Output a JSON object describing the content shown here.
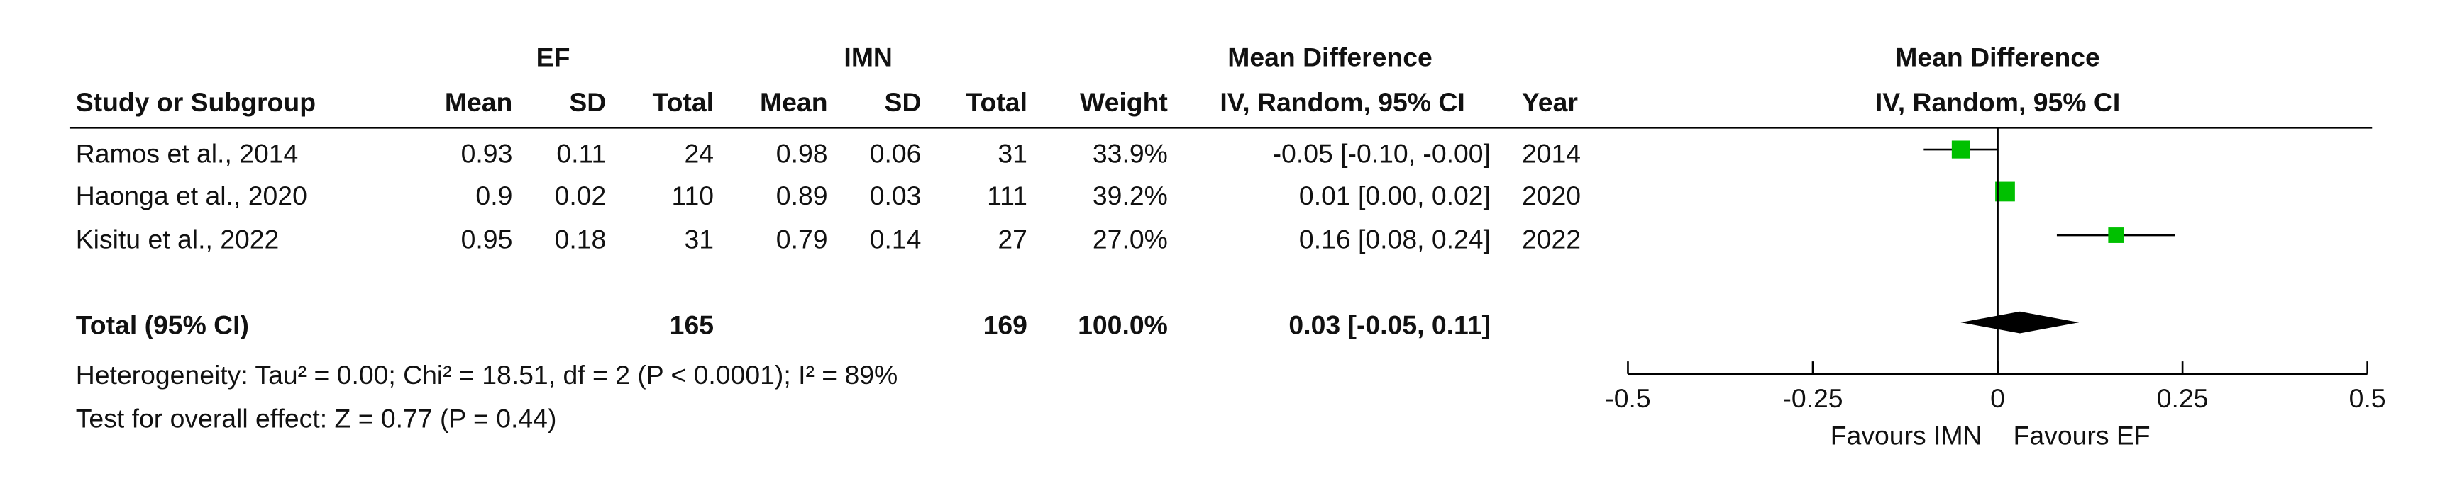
{
  "chart_data": {
    "type": "forest",
    "group_headers": [
      "EF",
      "IMN"
    ],
    "effect_header": "Mean Difference",
    "col_headers": [
      "Study or Subgroup",
      "Mean",
      "SD",
      "Total",
      "Mean",
      "SD",
      "Total",
      "Weight",
      "IV, Random, 95% CI",
      "Year"
    ],
    "plot_header": [
      "Mean Difference",
      "IV, Random, 95% CI"
    ],
    "studies": [
      {
        "name": "Ramos et al., 2014",
        "ef_mean": 0.93,
        "ef_sd": 0.11,
        "ef_total": 24,
        "imn_mean": 0.98,
        "imn_sd": 0.06,
        "imn_total": 31,
        "weight": {
          "value": 33.9,
          "label": "33.9%"
        },
        "md": -0.05,
        "ci": [
          -0.1,
          0
        ],
        "ci_label": "-0.05 [-0.10, -0.00]",
        "year": 2014
      },
      {
        "name": "Haonga et al., 2020",
        "ef_mean": 0.9,
        "ef_sd": 0.02,
        "ef_total": 110,
        "imn_mean": 0.89,
        "imn_sd": 0.03,
        "imn_total": 111,
        "weight": {
          "value": 39.2,
          "label": "39.2%"
        },
        "md": 0.01,
        "ci": [
          0,
          0.02
        ],
        "ci_label": "0.01 [0.00, 0.02]",
        "year": 2020
      },
      {
        "name": "Kisitu et al., 2022",
        "ef_mean": 0.95,
        "ef_sd": 0.18,
        "ef_total": 31,
        "imn_mean": 0.79,
        "imn_sd": 0.14,
        "imn_total": 27,
        "weight": {
          "value": 27.0,
          "label": "27.0%"
        },
        "md": 0.16,
        "ci": [
          0.08,
          0.24
        ],
        "ci_label": "0.16 [0.08, 0.24]",
        "year": 2022
      }
    ],
    "total": {
      "name": "Total (95% CI)",
      "ef_total": 165,
      "imn_total": 169,
      "weight": {
        "value": 100.0,
        "label": "100.0%"
      },
      "md": 0.03,
      "ci": [
        -0.05,
        0.11
      ],
      "ci_label": "0.03 [-0.05, 0.11]"
    },
    "heterogeneity": "Heterogeneity: Tau² = 0.00; Chi² = 18.51, df = 2 (P < 0.0001); I² = 89%",
    "overall_effect": "Test for overall effect: Z = 0.77 (P = 0.44)",
    "xlim": [
      -0.5,
      0.5
    ],
    "xticks": [
      -0.5,
      -0.25,
      0,
      0.25,
      0.5
    ],
    "favours": [
      "Favours IMN",
      "Favours EF"
    ],
    "marker_color": "#00c000",
    "diamond_color": "#000000"
  }
}
